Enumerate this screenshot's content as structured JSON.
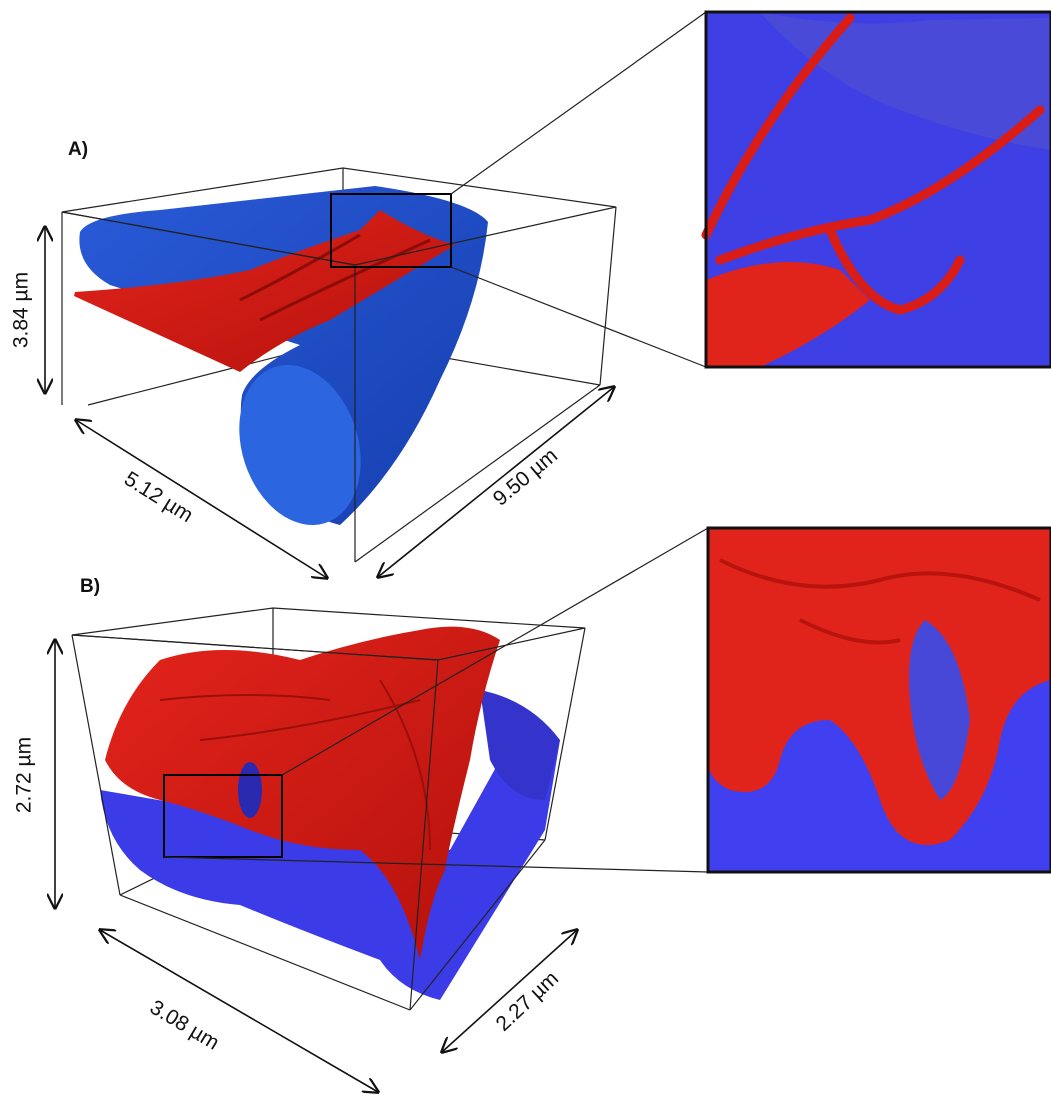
{
  "panels": [
    {
      "label": "A)",
      "dimensions": [
        "3.84 µm",
        "5.12 µm",
        "9.50 µm"
      ]
    },
    {
      "label": "B)",
      "dimensions": [
        "2.72 µm",
        "3.08 µm",
        "2.27 µm"
      ]
    }
  ]
}
